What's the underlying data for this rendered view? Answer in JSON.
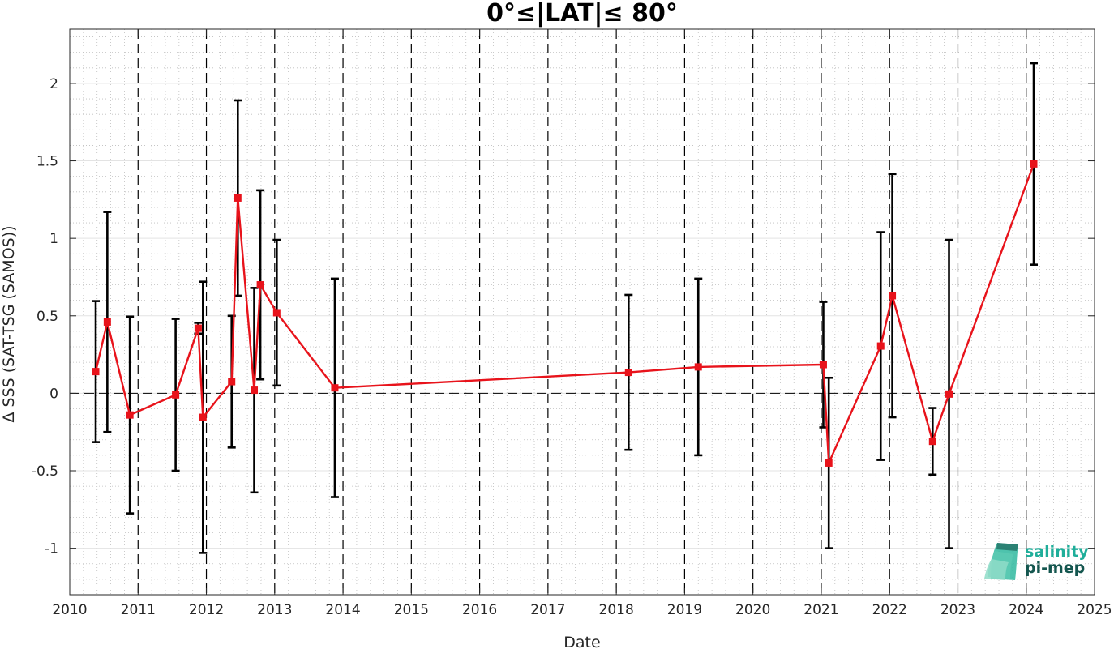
{
  "chart_data": {
    "type": "line",
    "title": "0°≤|LAT|≤ 80°",
    "xlabel": "Date",
    "ylabel": "Δ SSS (SAT-TSG (SAMOS))",
    "xlim": [
      2010,
      2025
    ],
    "ylim": [
      -1.3,
      2.35
    ],
    "x_ticks": [
      "2010",
      "2011",
      "2012",
      "2013",
      "2014",
      "2015",
      "2016",
      "2017",
      "2018",
      "2019",
      "2020",
      "2021",
      "2022",
      "2023",
      "2024",
      "2025"
    ],
    "y_ticks": [
      "-1",
      "-0.5",
      "0",
      "0.5",
      "1",
      "1.5",
      "2"
    ],
    "grid": true,
    "minor_grid": true,
    "reference_line_y": 0,
    "year_dividers": true,
    "series": [
      {
        "line_color": "#e8131b",
        "marker": "square",
        "errorbar_color": "#000000",
        "x": [
          2010.38,
          2010.55,
          2010.88,
          2011.55,
          2011.88,
          2011.95,
          2012.37,
          2012.46,
          2012.7,
          2012.79,
          2013.03,
          2013.88,
          2018.18,
          2019.2,
          2021.03,
          2021.11,
          2021.87,
          2022.04,
          2022.63,
          2022.87,
          2024.11
        ],
        "y": [
          0.14,
          0.46,
          -0.14,
          -0.01,
          0.42,
          -0.155,
          0.075,
          1.26,
          0.02,
          0.7,
          0.52,
          0.035,
          0.135,
          0.17,
          0.185,
          -0.45,
          0.305,
          0.63,
          -0.31,
          -0.005,
          1.48
        ],
        "err": [
          0.455,
          0.71,
          0.635,
          0.49,
          0.035,
          0.875,
          0.425,
          0.63,
          0.66,
          0.61,
          0.47,
          0.705,
          0.5,
          0.57,
          0.405,
          0.55,
          0.735,
          0.785,
          0.215,
          0.995,
          0.65
        ]
      }
    ]
  },
  "logo": {
    "line1": "salinity",
    "line2": "pi-mep",
    "line1_color": "#1fae9a",
    "line2_color": "#14564f"
  }
}
